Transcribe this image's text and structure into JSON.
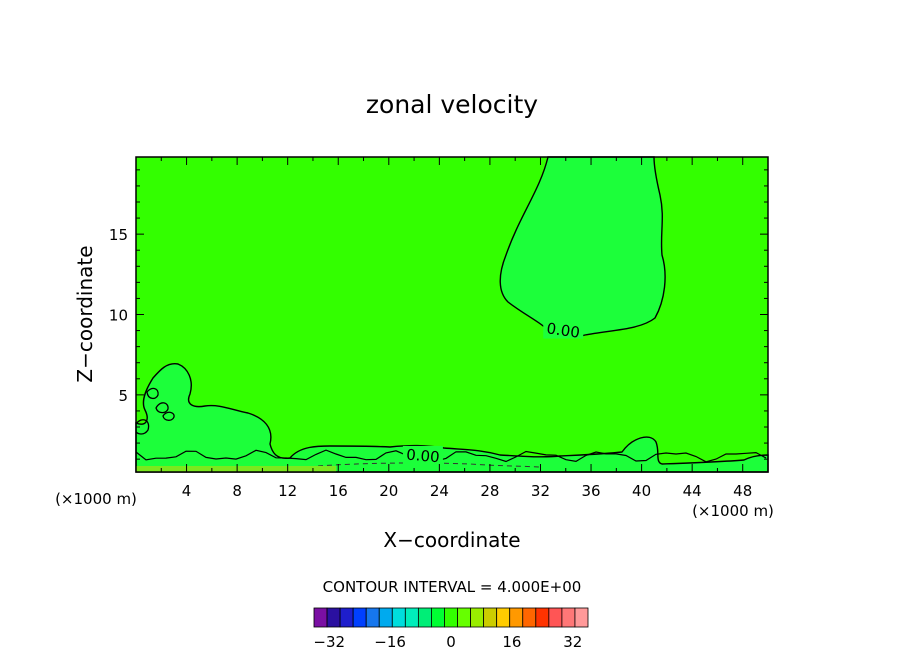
{
  "chart_data": {
    "type": "contour",
    "title": "zonal velocity",
    "xlabel": "X−coordinate",
    "ylabel": "Z−coordinate",
    "x_unit_left": "(×1000 m)",
    "x_unit_right": "(×1000 m)",
    "xlim": [
      0,
      50
    ],
    "ylim": [
      0.2,
      19.8
    ],
    "x_ticks": [
      4,
      8,
      12,
      16,
      20,
      24,
      28,
      32,
      36,
      40,
      44,
      48
    ],
    "x_tick_labels": [
      "4",
      "8",
      "12",
      "16",
      "20",
      "24",
      "28",
      "32",
      "36",
      "40",
      "44",
      "48"
    ],
    "y_ticks": [
      5,
      10,
      15
    ],
    "y_tick_labels": [
      "5",
      "10",
      "15"
    ],
    "contour_labels": [
      {
        "text": "0.00",
        "x": 33.8,
        "y": 9.0
      },
      {
        "text": "0.00",
        "x": 22.7,
        "y": 1.2
      }
    ],
    "background_value_color": "#33ff00",
    "region_color": "#1cff3a",
    "surface_layer_color": "#7be81e",
    "contour_line_color": "#000000",
    "contour_interval_text": "CONTOUR INTERVAL = 4.000E+00",
    "colorbar": {
      "min": -36,
      "max": 36,
      "step": 4,
      "colors": [
        "#7a0fa3",
        "#2a10a0",
        "#1e1ecc",
        "#0040ff",
        "#1677ee",
        "#00aaee",
        "#00dddd",
        "#00eebb",
        "#00ee77",
        "#00ff33",
        "#33ff00",
        "#66ff00",
        "#99ee00",
        "#cccc00",
        "#ffcc00",
        "#ff9900",
        "#ff6600",
        "#ff3300",
        "#ff5555",
        "#ff7777",
        "#ff9999"
      ],
      "tick_values": [
        -32,
        -16,
        0,
        16,
        32
      ],
      "tick_labels": [
        "−32",
        "−16",
        "0",
        "16",
        "32"
      ]
    }
  }
}
